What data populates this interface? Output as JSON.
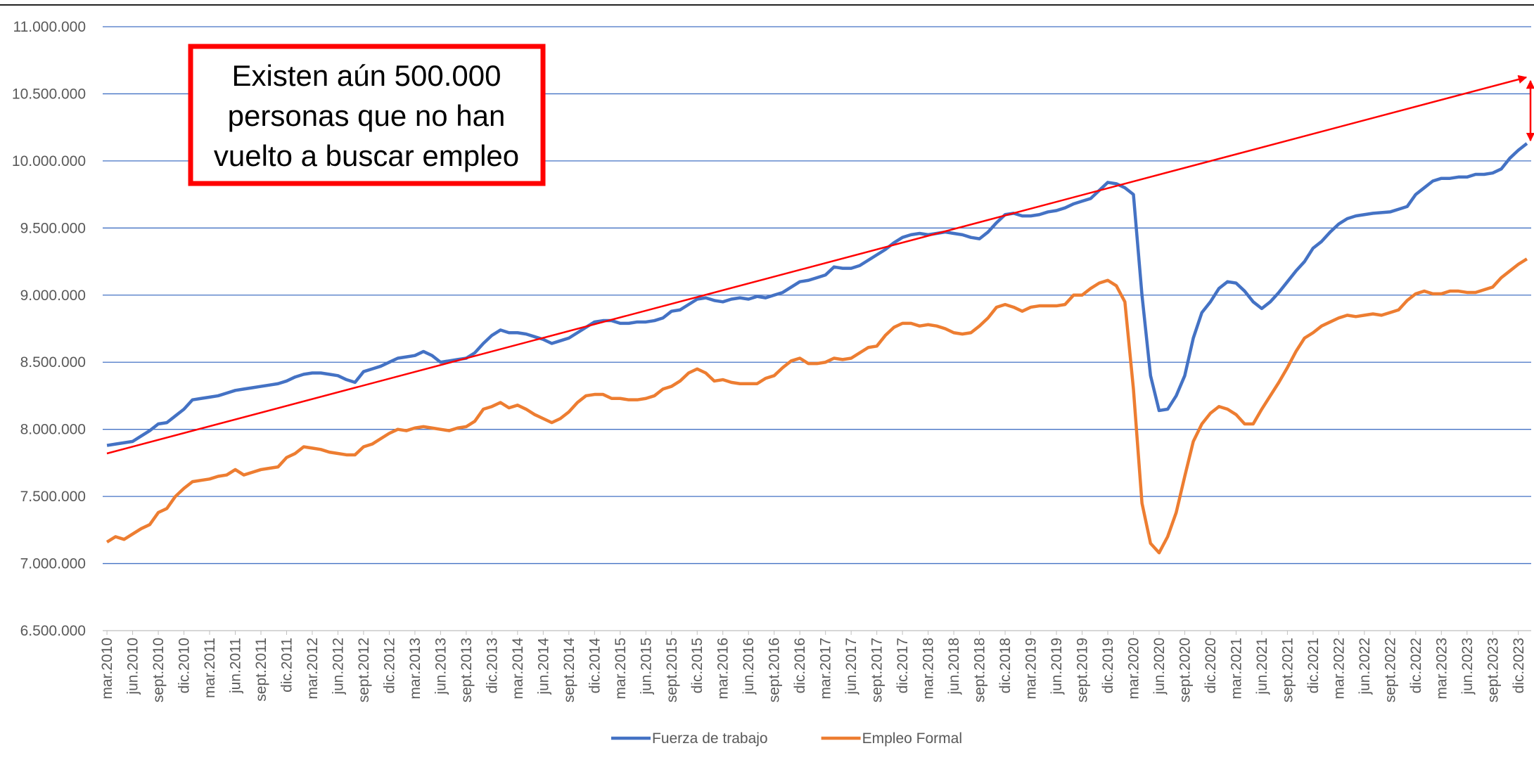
{
  "chart_data": {
    "type": "line",
    "categories": [
      "mar.2010",
      null,
      null,
      "jun.2010",
      null,
      null,
      "sept.2010",
      null,
      null,
      "dic.2010",
      null,
      null,
      "mar.2011",
      null,
      null,
      "jun.2011",
      null,
      null,
      "sept.2011",
      null,
      null,
      "dic.2011",
      null,
      null,
      "mar.2012",
      null,
      null,
      "jun.2012",
      null,
      null,
      "sept.2012",
      null,
      null,
      "dic.2012",
      null,
      null,
      "mar.2013",
      null,
      null,
      "jun.2013",
      null,
      null,
      "sept.2013",
      null,
      null,
      "dic.2013",
      null,
      null,
      "mar.2014",
      null,
      null,
      "jun.2014",
      null,
      null,
      "sept.2014",
      null,
      null,
      "dic.2014",
      null,
      null,
      "mar.2015",
      null,
      null,
      "jun.2015",
      null,
      null,
      "sept.2015",
      null,
      null,
      "dic.2015",
      null,
      null,
      "mar.2016",
      null,
      null,
      "jun.2016",
      null,
      null,
      "sept.2016",
      null,
      null,
      "dic.2016",
      null,
      null,
      "mar.2017",
      null,
      null,
      "jun.2017",
      null,
      null,
      "sept.2017",
      null,
      null,
      "dic.2017",
      null,
      null,
      "mar.2018",
      null,
      null,
      "jun.2018",
      null,
      null,
      "sept.2018",
      null,
      null,
      "dic.2018",
      null,
      null,
      "mar.2019",
      null,
      null,
      "jun.2019",
      null,
      null,
      "sept.2019",
      null,
      null,
      "dic.2019",
      null,
      null,
      "mar.2020",
      null,
      null,
      "jun.2020",
      null,
      null,
      "sept.2020",
      null,
      null,
      "dic.2020",
      null,
      null,
      "mar.2021",
      null,
      null,
      "jun.2021",
      null,
      null,
      "sept.2021",
      null,
      null,
      "dic.2021",
      null,
      null,
      "mar.2022",
      null,
      null,
      "jun.2022",
      null,
      null,
      "sept.2022",
      null,
      null,
      "dic.2022",
      null,
      null,
      "mar.2023",
      null,
      null,
      "jun.2023",
      null,
      null,
      "sept.2023",
      null,
      null,
      "dic.2023",
      null
    ],
    "series": [
      {
        "name": "Fuerza de trabajo",
        "color": "#4472c4",
        "values": [
          7880000,
          7890000,
          7900000,
          7910000,
          7950000,
          7990000,
          8040000,
          8050000,
          8100000,
          8150000,
          8220000,
          8230000,
          8240000,
          8250000,
          8270000,
          8290000,
          8300000,
          8310000,
          8320000,
          8330000,
          8340000,
          8360000,
          8390000,
          8410000,
          8420000,
          8420000,
          8410000,
          8400000,
          8370000,
          8350000,
          8430000,
          8450000,
          8470000,
          8500000,
          8530000,
          8540000,
          8550000,
          8580000,
          8550000,
          8500000,
          8510000,
          8520000,
          8530000,
          8570000,
          8640000,
          8700000,
          8740000,
          8720000,
          8720000,
          8710000,
          8690000,
          8670000,
          8640000,
          8660000,
          8680000,
          8720000,
          8760000,
          8800000,
          8810000,
          8810000,
          8790000,
          8790000,
          8800000,
          8800000,
          8810000,
          8830000,
          8880000,
          8890000,
          8930000,
          8970000,
          8980000,
          8960000,
          8950000,
          8970000,
          8980000,
          8970000,
          8990000,
          8980000,
          9000000,
          9020000,
          9060000,
          9100000,
          9110000,
          9130000,
          9150000,
          9210000,
          9200000,
          9200000,
          9220000,
          9260000,
          9300000,
          9340000,
          9390000,
          9430000,
          9450000,
          9460000,
          9450000,
          9460000,
          9470000,
          9460000,
          9450000,
          9430000,
          9420000,
          9470000,
          9540000,
          9600000,
          9610000,
          9590000,
          9590000,
          9600000,
          9620000,
          9630000,
          9650000,
          9680000,
          9700000,
          9720000,
          9780000,
          9840000,
          9830000,
          9800000,
          9750000,
          9000000,
          8400000,
          8140000,
          8150000,
          8250000,
          8400000,
          8680000,
          8870000,
          8950000,
          9050000,
          9100000,
          9090000,
          9030000,
          8950000,
          8900000,
          8950000,
          9020000,
          9100000,
          9180000,
          9250000,
          9350000,
          9400000,
          9470000,
          9530000,
          9570000,
          9590000,
          9600000,
          9610000,
          9615000,
          9620000,
          9640000,
          9660000,
          9750000,
          9800000,
          9850000,
          9870000,
          9870000,
          9880000,
          9880000,
          9900000,
          9900000,
          9910000,
          9940000,
          10020000,
          10080000,
          10130000
        ]
      },
      {
        "name": "Empleo Formal",
        "color": "#ed7d31",
        "values": [
          7160000,
          7200000,
          7180000,
          7220000,
          7260000,
          7290000,
          7380000,
          7410000,
          7500000,
          7560000,
          7610000,
          7620000,
          7630000,
          7650000,
          7660000,
          7700000,
          7660000,
          7680000,
          7700000,
          7710000,
          7720000,
          7790000,
          7820000,
          7870000,
          7860000,
          7850000,
          7830000,
          7820000,
          7810000,
          7810000,
          7870000,
          7890000,
          7930000,
          7970000,
          8000000,
          7990000,
          8010000,
          8020000,
          8010000,
          8000000,
          7990000,
          8010000,
          8020000,
          8060000,
          8150000,
          8170000,
          8200000,
          8160000,
          8180000,
          8150000,
          8110000,
          8080000,
          8050000,
          8080000,
          8130000,
          8200000,
          8250000,
          8260000,
          8260000,
          8230000,
          8230000,
          8220000,
          8220000,
          8230000,
          8250000,
          8300000,
          8320000,
          8360000,
          8420000,
          8450000,
          8420000,
          8360000,
          8370000,
          8350000,
          8340000,
          8340000,
          8340000,
          8380000,
          8400000,
          8460000,
          8510000,
          8530000,
          8490000,
          8490000,
          8500000,
          8530000,
          8520000,
          8530000,
          8570000,
          8610000,
          8620000,
          8700000,
          8760000,
          8790000,
          8790000,
          8770000,
          8780000,
          8770000,
          8750000,
          8720000,
          8710000,
          8720000,
          8770000,
          8830000,
          8910000,
          8930000,
          8910000,
          8880000,
          8910000,
          8920000,
          8920000,
          8920000,
          8930000,
          9000000,
          9000000,
          9050000,
          9090000,
          9110000,
          9070000,
          8950000,
          8300000,
          7450000,
          7150000,
          7080000,
          7200000,
          7380000,
          7650000,
          7910000,
          8040000,
          8120000,
          8170000,
          8150000,
          8110000,
          8040000,
          8040000,
          8150000,
          8250000,
          8350000,
          8460000,
          8580000,
          8680000,
          8720000,
          8770000,
          8800000,
          8830000,
          8850000,
          8840000,
          8850000,
          8860000,
          8850000,
          8870000,
          8890000,
          8960000,
          9010000,
          9030000,
          9010000,
          9010000,
          9030000,
          9030000,
          9020000,
          9020000,
          9040000,
          9060000,
          9130000,
          9180000,
          9230000,
          9270000
        ]
      }
    ],
    "ylim": [
      6500000,
      11000000
    ],
    "yticks": [
      {
        "value": 6500000,
        "label": "6.500.000"
      },
      {
        "value": 7000000,
        "label": "7.000.000"
      },
      {
        "value": 7500000,
        "label": "7.500.000"
      },
      {
        "value": 8000000,
        "label": "8.000.000"
      },
      {
        "value": 8500000,
        "label": "8.500.000"
      },
      {
        "value": 9000000,
        "label": "9.000.000"
      },
      {
        "value": 9500000,
        "label": "9.500.000"
      },
      {
        "value": 10000000,
        "label": "10.000.000"
      },
      {
        "value": 10500000,
        "label": "10.500.000"
      },
      {
        "value": 11000000,
        "label": "11.000.000"
      }
    ],
    "grid": true,
    "grid_color": "#4472c4",
    "legend": "bottom",
    "annotation": [
      "Existen aún 500.000",
      "personas que no han",
      "vuelto a buscar empleo"
    ]
  }
}
